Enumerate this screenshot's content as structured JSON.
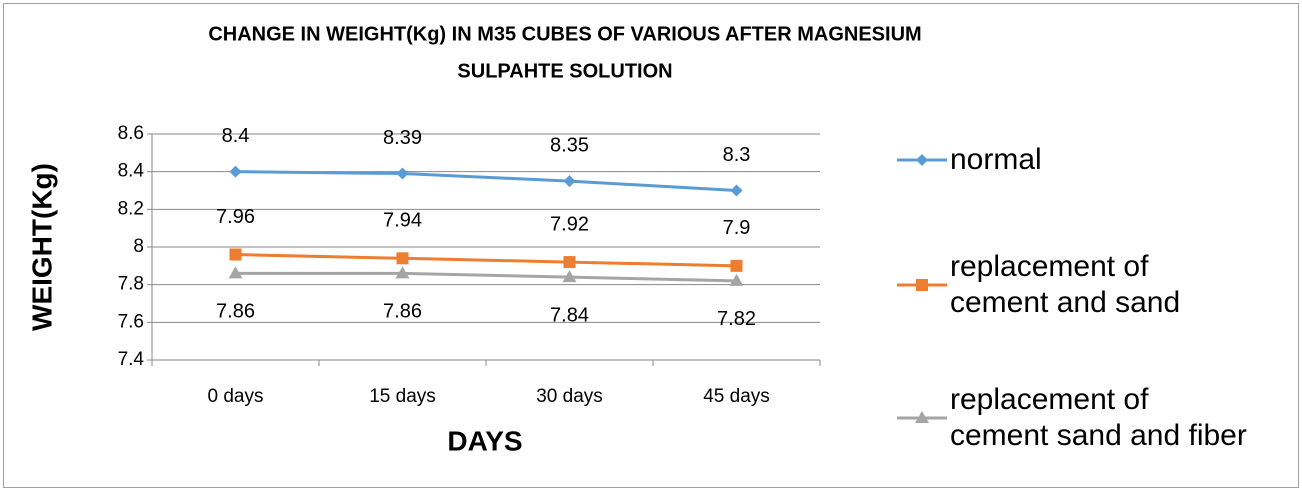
{
  "chart_data": {
    "type": "line",
    "title": [
      "CHANGE IN WEIGHT(Kg) IN M35 CUBES OF VARIOUS AFTER MAGNESIUM",
      "SULPAHTE SOLUTION"
    ],
    "x_label": "DAYS",
    "y_label": "WEIGHT(Kg)",
    "categories": [
      "0 days",
      "15 days",
      "30 days",
      "45 days"
    ],
    "series": [
      {
        "name": "normal",
        "color": "#5b9bd5",
        "marker": "diamond",
        "values": [
          8.4,
          8.39,
          8.35,
          8.3
        ]
      },
      {
        "name": "replacement of cement and sand",
        "color": "#ed7d31",
        "marker": "square",
        "values": [
          7.96,
          7.94,
          7.92,
          7.9
        ]
      },
      {
        "name": "replacement of cement sand and fiber",
        "color": "#a5a5a5",
        "marker": "triangle",
        "values": [
          7.86,
          7.86,
          7.84,
          7.82
        ]
      }
    ],
    "ylim": [
      7.4,
      8.6
    ],
    "yticks": [
      7.4,
      7.6,
      7.8,
      8,
      8.2,
      8.4,
      8.6
    ],
    "grid": true,
    "legend": "right"
  }
}
